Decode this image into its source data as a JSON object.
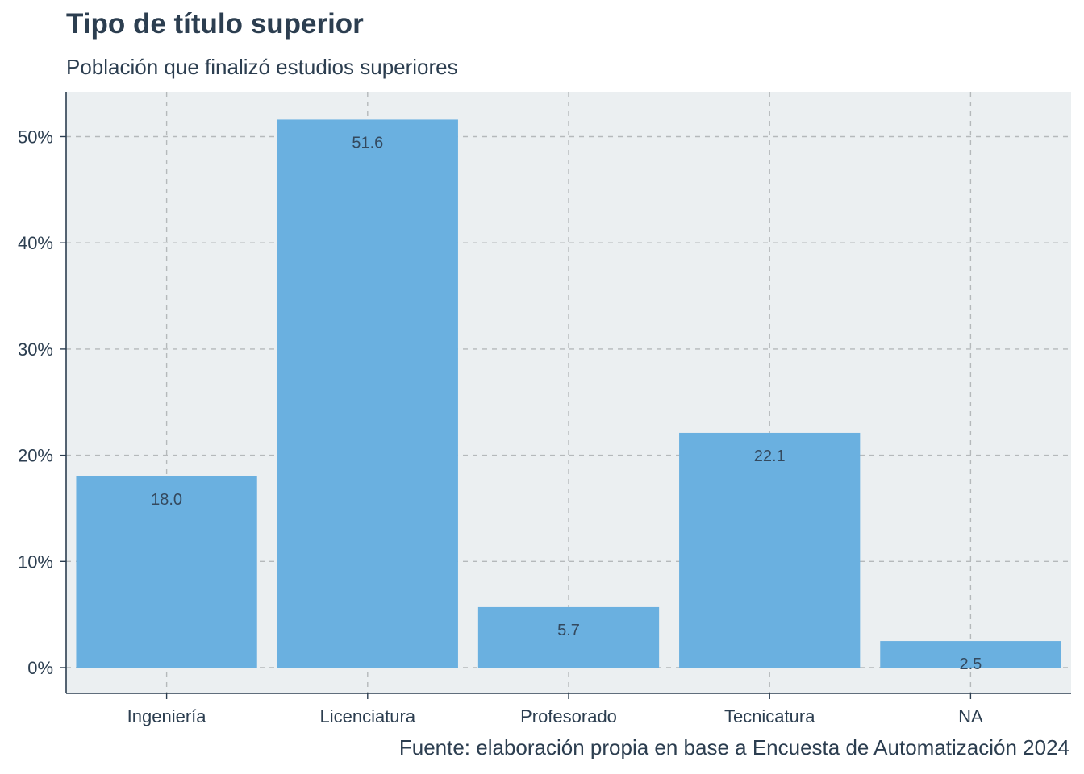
{
  "chart_data": {
    "type": "bar",
    "title": "Tipo de título superior",
    "subtitle": "Población que finalizó estudios superiores",
    "caption": "Fuente: elaboración propia en base a Encuesta de Automatización 2024",
    "categories": [
      "Ingeniería",
      "Licenciatura",
      "Profesorado",
      "Tecnicatura",
      "NA"
    ],
    "values": [
      18.0,
      51.6,
      5.7,
      22.1,
      2.5
    ],
    "value_labels": [
      "18.0",
      "51.6",
      "5.7",
      "22.1",
      "2.5"
    ],
    "y_ticks": [
      0,
      10,
      20,
      30,
      40,
      50
    ],
    "y_tick_labels": [
      "0%",
      "10%",
      "20%",
      "30%",
      "40%",
      "50%"
    ],
    "ylim": [
      0,
      54
    ],
    "xlabel": "",
    "ylabel": "",
    "grid": "dashed major gridlines",
    "legend": "none",
    "colors": {
      "bar": "#6ab0e0",
      "panel": "#ebeff1",
      "grid": "#b5b9bb",
      "axis": "#2c3e50",
      "text": "#2c3e50"
    }
  }
}
